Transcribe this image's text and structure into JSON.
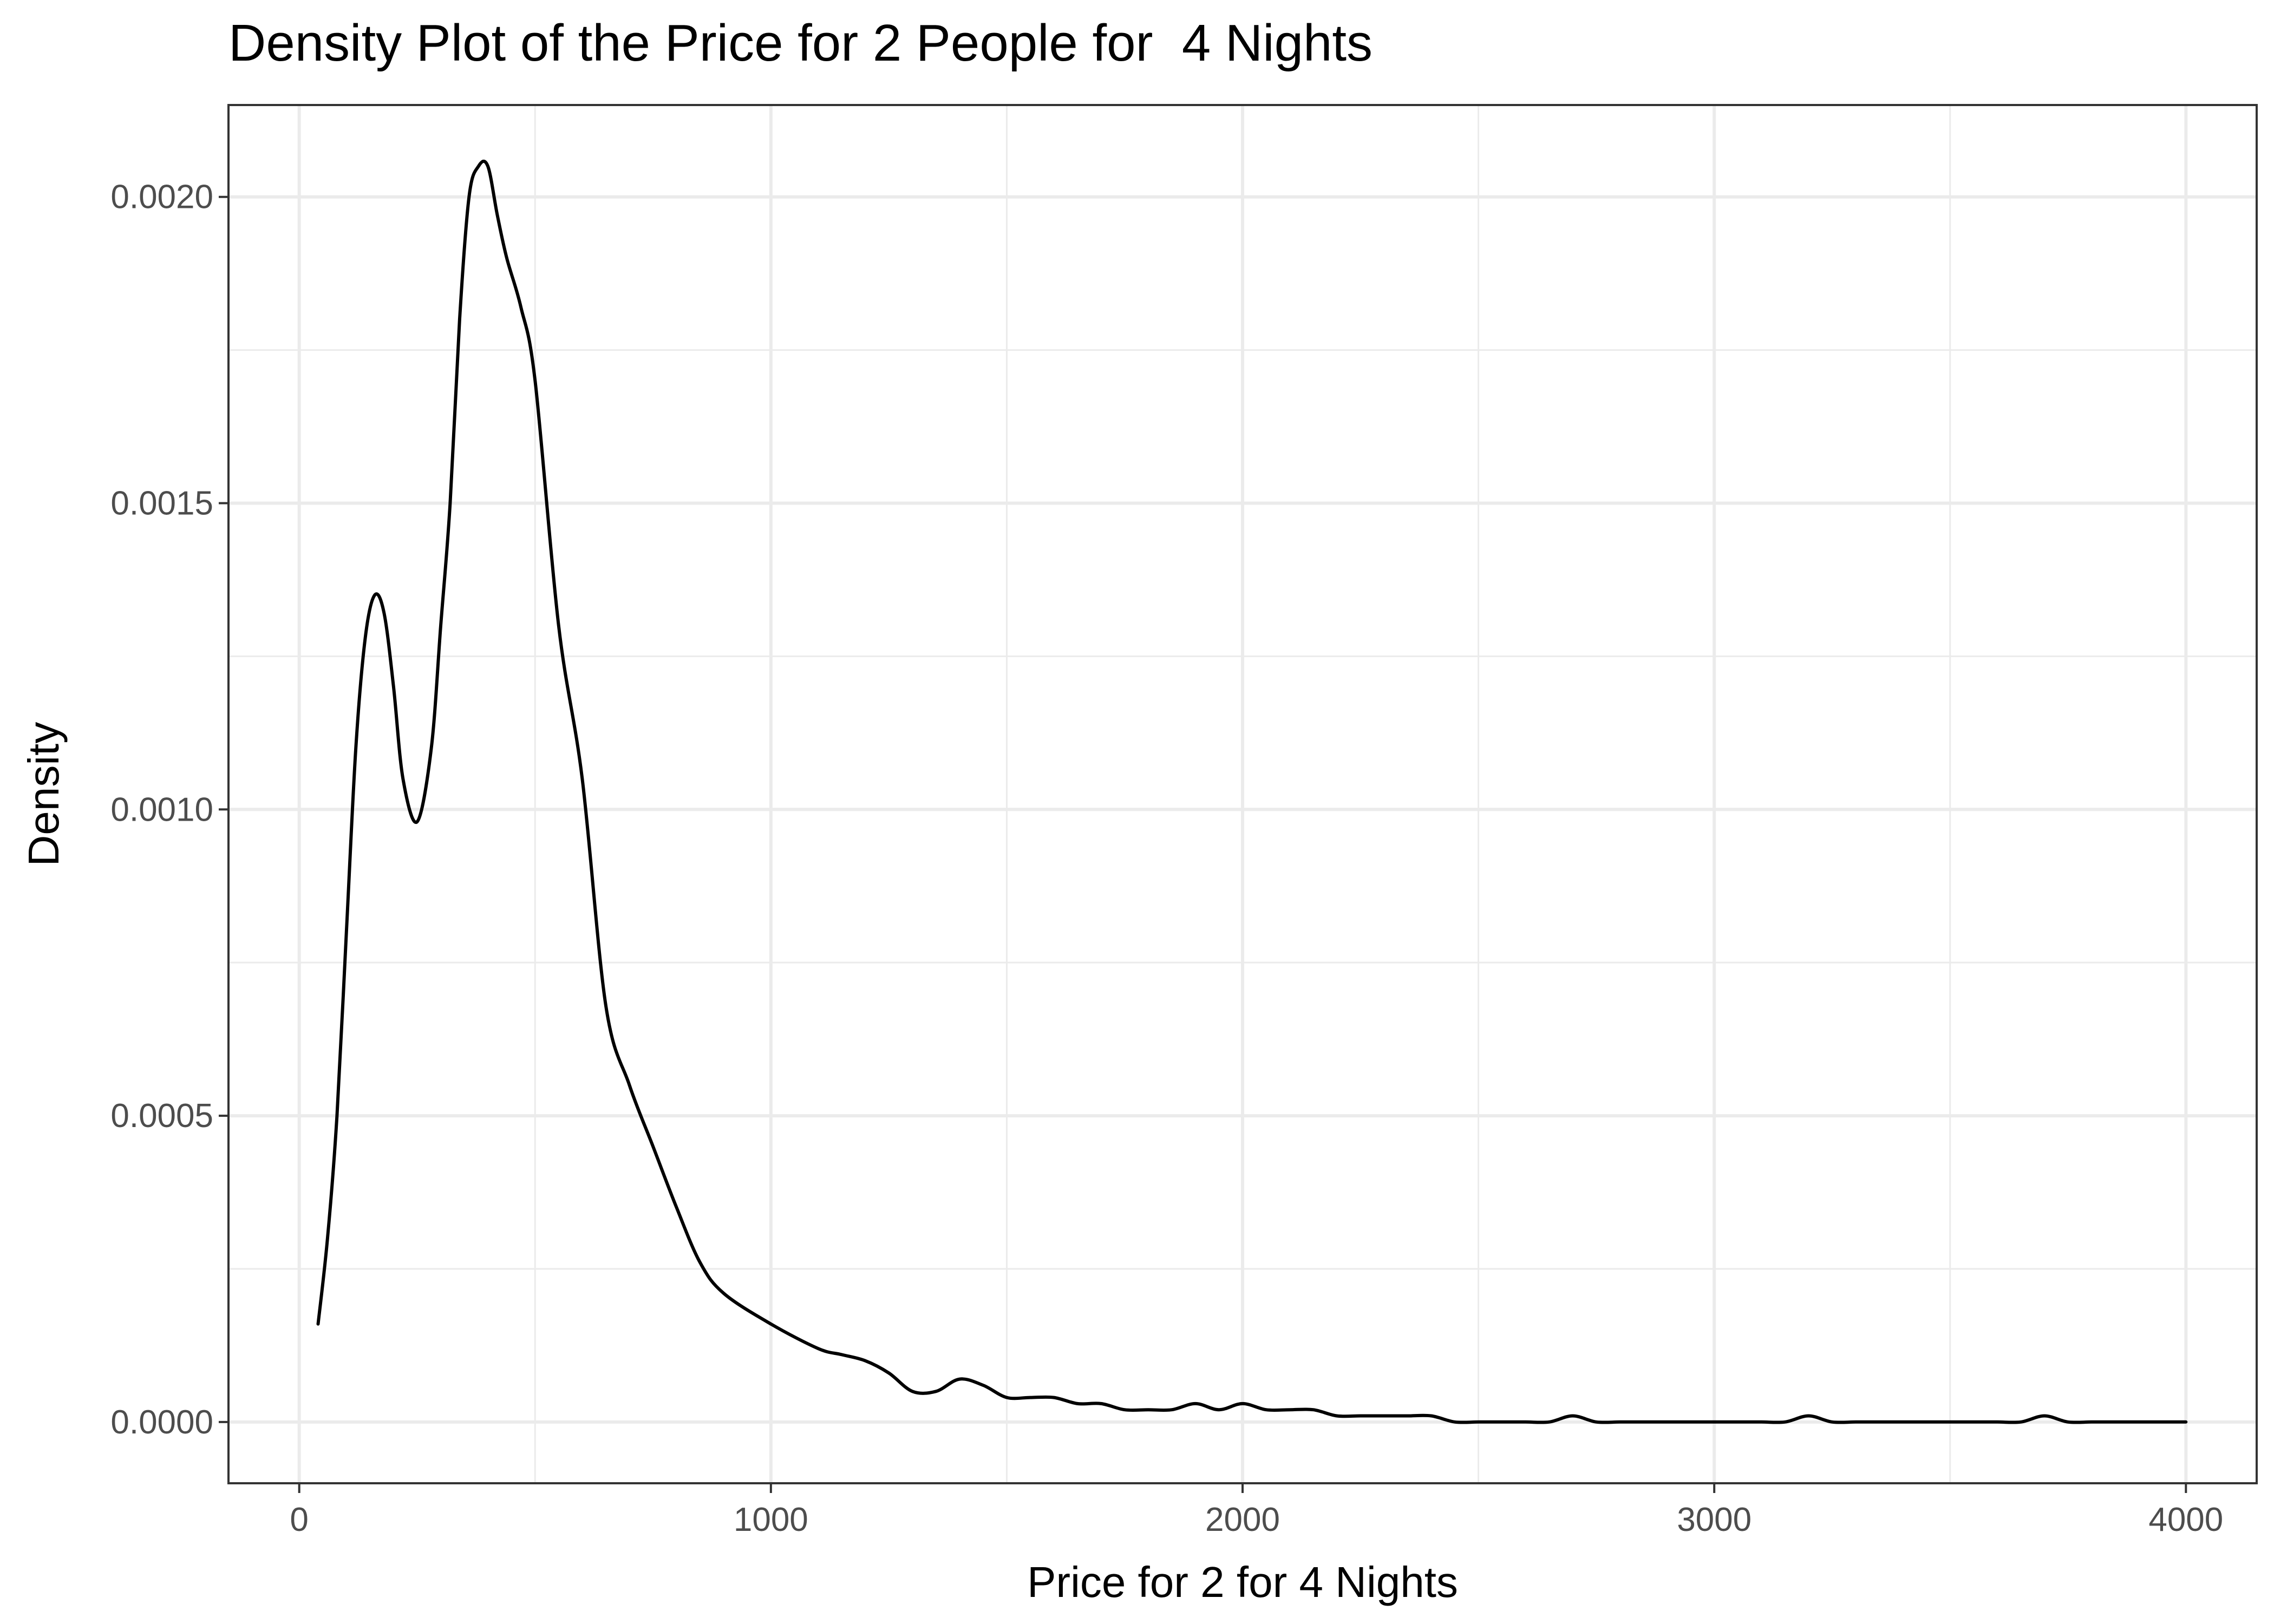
{
  "chart_data": {
    "type": "line",
    "title": "Density Plot of the Price for 2 People for  4 Nights",
    "xlabel": "Price for 2 for 4 Nights",
    "ylabel": "Density",
    "xlim": [
      -150,
      4150
    ],
    "ylim": [
      -0.0001,
      0.00215
    ],
    "x_ticks": [
      0,
      1000,
      2000,
      3000,
      4000
    ],
    "x_tick_labels": [
      "0",
      "1000",
      "2000",
      "3000",
      "4000"
    ],
    "y_ticks": [
      0,
      0.0005,
      0.001,
      0.0015,
      0.002
    ],
    "y_tick_labels": [
      "0.0000",
      "0.0005",
      "0.0010",
      "0.0015",
      "0.0020"
    ],
    "grid": true,
    "legend": "none",
    "line_color": "#000000",
    "series": [
      {
        "x": [
          40,
          60,
          80,
          100,
          120,
          140,
          160,
          180,
          200,
          220,
          250,
          280,
          300,
          320,
          340,
          360,
          380,
          400,
          420,
          440,
          470,
          500,
          550,
          600,
          650,
          700,
          750,
          800,
          850,
          900,
          1000,
          1100,
          1150,
          1200,
          1250,
          1300,
          1350,
          1400,
          1450,
          1500,
          1550,
          1600,
          1650,
          1700,
          1750,
          1800,
          1850,
          1900,
          1950,
          2000,
          2050,
          2100,
          2150,
          2200,
          2250,
          2300,
          2350,
          2400,
          2450,
          2500,
          2550,
          2600,
          2650,
          2700,
          2750,
          2800,
          2850,
          2900,
          2950,
          3000,
          3050,
          3100,
          3150,
          3200,
          3250,
          3300,
          3350,
          3400,
          3450,
          3500,
          3550,
          3600,
          3650,
          3700,
          3750,
          3800,
          3850,
          3900,
          3950,
          4000
        ],
        "y": [
          0.00016,
          0.0003,
          0.0005,
          0.0008,
          0.0011,
          0.00128,
          0.00135,
          0.00132,
          0.0012,
          0.00105,
          0.00098,
          0.0011,
          0.0013,
          0.0015,
          0.0018,
          0.002,
          0.00205,
          0.00205,
          0.00197,
          0.0019,
          0.00182,
          0.0017,
          0.0013,
          0.00105,
          0.00068,
          0.00055,
          0.00045,
          0.00035,
          0.00026,
          0.00021,
          0.00016,
          0.00012,
          0.00011,
          0.0001,
          8e-05,
          5e-05,
          5e-05,
          7e-05,
          6e-05,
          4e-05,
          4e-05,
          4e-05,
          3e-05,
          3e-05,
          2e-05,
          2e-05,
          2e-05,
          3e-05,
          2e-05,
          3e-05,
          2e-05,
          2e-05,
          2e-05,
          1e-05,
          1e-05,
          1e-05,
          1e-05,
          1e-05,
          0.0,
          0.0,
          0.0,
          0.0,
          0.0,
          1e-05,
          0.0,
          0.0,
          0.0,
          0.0,
          0.0,
          0.0,
          0.0,
          0.0,
          0.0,
          1e-05,
          0.0,
          0.0,
          0.0,
          0.0,
          0.0,
          0.0,
          0.0,
          0.0,
          0.0,
          1e-05,
          0.0,
          0.0,
          0.0,
          0.0,
          0.0,
          0.0
        ]
      }
    ]
  }
}
